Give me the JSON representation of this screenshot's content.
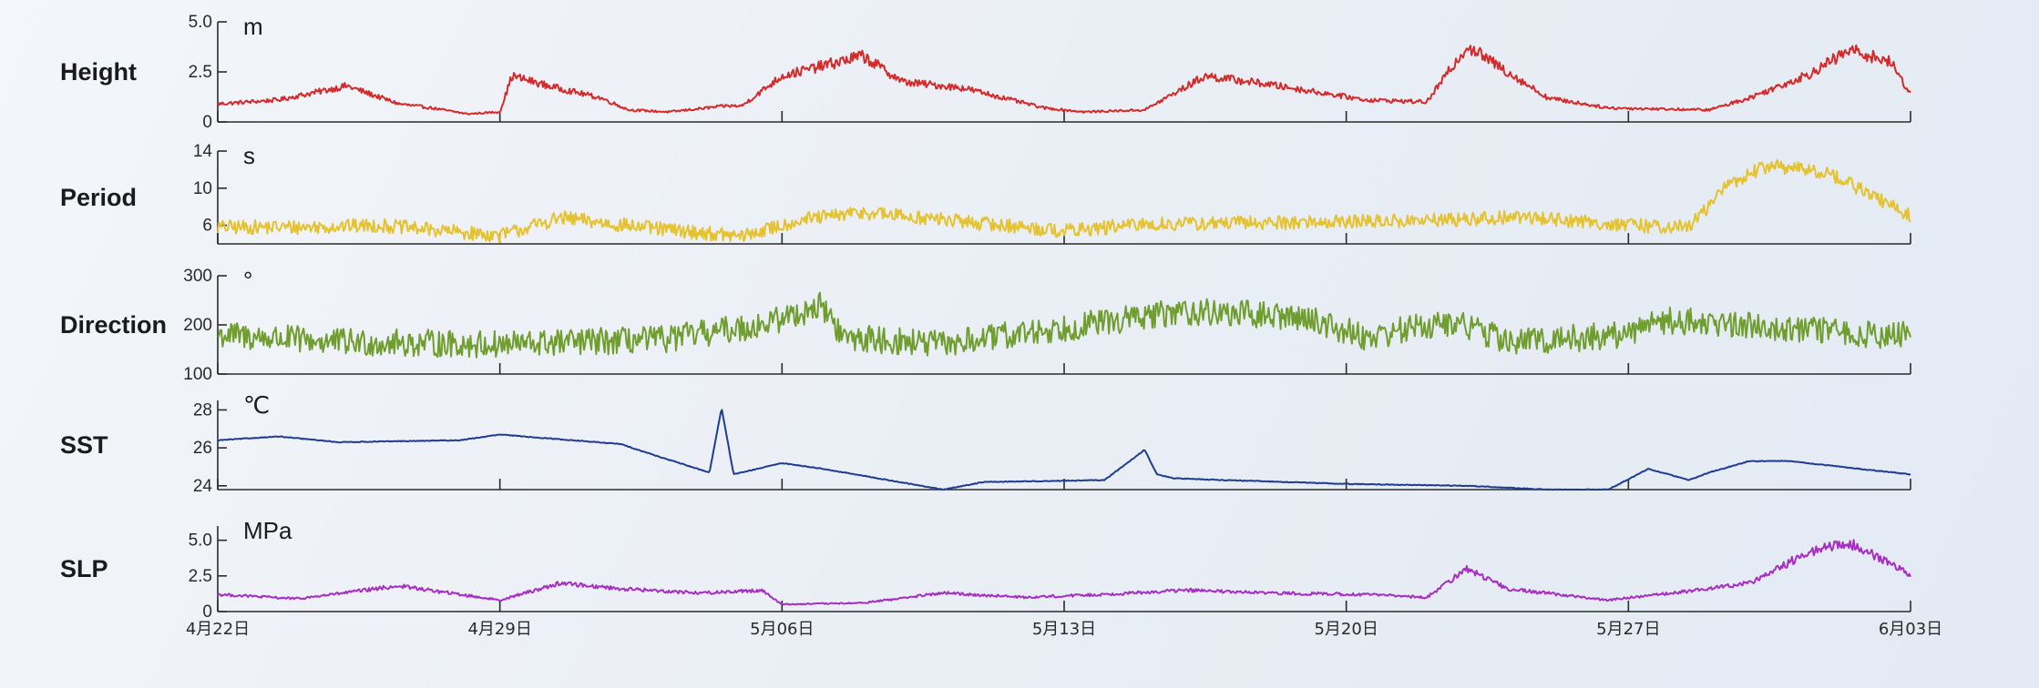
{
  "chart_data": {
    "type": "line",
    "x_axis": {
      "tick_labels": [
        "4月22日",
        "4月29日",
        "5月06日",
        "5月13日",
        "5月20日",
        "5月27日",
        "6月03日"
      ],
      "range": [
        "4月22日",
        "6月03日"
      ]
    },
    "panels": [
      {
        "name": "Height",
        "unit": "m",
        "color": "#d42a2a",
        "ylim": [
          0,
          5.0
        ],
        "yticks": [
          0,
          2.5,
          5.0
        ],
        "ytick_labels": [
          "0",
          "2.5",
          "5.0"
        ],
        "x_days": [
          0,
          1.5,
          3.2,
          4.5,
          5.3,
          6.2,
          7.0,
          7.3,
          8.2,
          9.5,
          10.2,
          11.2,
          12.6,
          13.0,
          14.0,
          16.0,
          17.0,
          18.5,
          20.5,
          21.5,
          23.0,
          24.5,
          26.0,
          28.5,
          30.0,
          31.0,
          33.0,
          34.5,
          37.0,
          38.0,
          39.5,
          40.5,
          41.5,
          42.0
        ],
        "y_values": [
          0.9,
          1.1,
          1.8,
          0.9,
          0.7,
          0.4,
          0.5,
          2.3,
          1.8,
          1.2,
          0.6,
          0.5,
          0.8,
          0.8,
          2.3,
          3.3,
          2.0,
          1.7,
          0.7,
          0.5,
          0.6,
          2.3,
          1.9,
          1.1,
          1.0,
          3.8,
          1.2,
          0.7,
          0.6,
          1.2,
          2.4,
          3.6,
          3.0,
          1.4
        ]
      },
      {
        "name": "Period",
        "unit": "s",
        "color": "#e5c230",
        "ylim": [
          4,
          14
        ],
        "yticks": [
          6,
          10,
          14
        ],
        "ytick_labels": [
          "6",
          "10",
          "14"
        ],
        "x_days": [
          0,
          2.0,
          4.0,
          7.0,
          8.5,
          10.5,
          13.0,
          14.5,
          16.0,
          18.0,
          21.0,
          23.0,
          26.0,
          30.0,
          32.5,
          35.0,
          36.5,
          37.5,
          38.5,
          40.0,
          42.0
        ],
        "y_values": [
          5.8,
          5.8,
          6.0,
          4.9,
          6.8,
          5.8,
          4.8,
          6.6,
          7.4,
          6.6,
          5.4,
          6.1,
          6.3,
          6.5,
          6.9,
          6.0,
          5.8,
          10.5,
          12.5,
          11.6,
          7.0
        ]
      },
      {
        "name": "Direction",
        "unit": "°",
        "color": "#6f9e2f",
        "ylim": [
          100,
          300
        ],
        "yticks": [
          100,
          200,
          300
        ],
        "ytick_labels": [
          "100",
          "200",
          "300"
        ],
        "x_days": [
          0,
          3.0,
          7.0,
          11.0,
          13.5,
          15.0,
          15.5,
          18.0,
          21.5,
          24.0,
          27.0,
          28.5,
          30.0,
          31.0,
          32.0,
          35.0,
          35.5,
          38.0,
          41.0,
          42.0
        ],
        "y_values": [
          180,
          165,
          160,
          170,
          200,
          240,
          175,
          160,
          200,
          228,
          215,
          175,
          200,
          200,
          165,
          180,
          210,
          200,
          180,
          178
        ]
      },
      {
        "name": "SST",
        "unit": "℃",
        "color": "#203c90",
        "ylim": [
          23.8,
          28.5
        ],
        "yticks": [
          24,
          26,
          28
        ],
        "ytick_labels": [
          "24",
          "26",
          "28"
        ],
        "x_days": [
          0,
          1.5,
          3.0,
          6.0,
          7.0,
          10.0,
          11.0,
          12.2,
          12.5,
          12.8,
          13.2,
          14.0,
          15.0,
          18.0,
          19.0,
          22.0,
          23.0,
          23.3,
          23.7,
          25.0,
          28.0,
          31.0,
          33.0,
          34.5,
          35.5,
          36.5,
          37.0,
          38.0,
          39.0,
          42.0
        ],
        "y_values": [
          26.4,
          26.6,
          26.3,
          26.4,
          26.7,
          26.2,
          25.5,
          24.7,
          28.1,
          24.6,
          24.8,
          25.2,
          24.9,
          23.8,
          24.2,
          24.3,
          25.9,
          24.6,
          24.4,
          24.3,
          24.1,
          24.0,
          23.8,
          23.8,
          24.9,
          24.3,
          24.7,
          25.3,
          25.3,
          24.6
        ]
      },
      {
        "name": "SLP",
        "unit": "MPa",
        "color": "#a62ec2",
        "ylim": [
          0,
          6.0
        ],
        "yticks": [
          0,
          2.5,
          5.0
        ],
        "ytick_labels": [
          "0",
          "2.5",
          "5.0"
        ],
        "x_days": [
          0,
          2.0,
          4.5,
          7.0,
          8.5,
          10.0,
          12.0,
          13.5,
          14.0,
          16.0,
          18.0,
          20.0,
          22.0,
          24.0,
          26.0,
          28.5,
          30.0,
          31.0,
          32.0,
          34.5,
          37.0,
          38.0,
          39.5,
          40.5,
          42.0
        ],
        "y_values": [
          1.2,
          0.9,
          1.8,
          0.8,
          2.0,
          1.6,
          1.3,
          1.5,
          0.5,
          0.6,
          1.3,
          1.0,
          1.2,
          1.5,
          1.3,
          1.2,
          1.0,
          3.0,
          1.6,
          0.8,
          1.6,
          2.0,
          4.2,
          4.8,
          2.6
        ]
      }
    ]
  }
}
